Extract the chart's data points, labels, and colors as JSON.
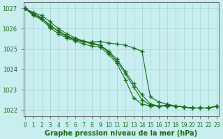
{
  "lines": [
    {
      "x": [
        0,
        1,
        2,
        3,
        4,
        5,
        6,
        7,
        8,
        9,
        10,
        11,
        12,
        13,
        14,
        15,
        16,
        17,
        18,
        19,
        20,
        21,
        22,
        23
      ],
      "y": [
        1027.0,
        1026.8,
        1026.65,
        1026.35,
        1026.0,
        1025.75,
        1025.55,
        1025.4,
        1025.3,
        1025.2,
        1024.9,
        1024.5,
        1023.9,
        1023.3,
        1022.75,
        1022.3,
        1022.2,
        1022.2,
        1022.2,
        1022.15,
        1022.1,
        1022.1,
        1022.1,
        1022.2
      ]
    },
    {
      "x": [
        0,
        1,
        2,
        3,
        4,
        5,
        6,
        7,
        8,
        9,
        10,
        11,
        12,
        13,
        14,
        15,
        16,
        17,
        18,
        19,
        20,
        21,
        22,
        23
      ],
      "y": [
        1027.0,
        1026.7,
        1026.5,
        1026.2,
        1025.85,
        1025.6,
        1025.45,
        1025.35,
        1025.35,
        1025.38,
        1025.3,
        1025.25,
        1025.2,
        1025.05,
        1024.9,
        1022.65,
        1022.4,
        1022.3,
        1022.2,
        1022.15,
        1022.1,
        1022.1,
        1022.1,
        1022.2
      ]
    },
    {
      "x": [
        0,
        1,
        2,
        3,
        4,
        5,
        6,
        7,
        8,
        9,
        10,
        11,
        12,
        13,
        14,
        15,
        16,
        17,
        18,
        19,
        20,
        21,
        22,
        23
      ],
      "y": [
        1027.0,
        1026.75,
        1026.55,
        1026.1,
        1025.9,
        1025.65,
        1025.5,
        1025.38,
        1025.25,
        1025.18,
        1024.85,
        1024.4,
        1023.8,
        1023.15,
        1022.5,
        1022.25,
        1022.2,
        1022.2,
        1022.2,
        1022.15,
        1022.1,
        1022.1,
        1022.1,
        1022.2
      ]
    },
    {
      "x": [
        0,
        1,
        2,
        3,
        4,
        5,
        6,
        7,
        8,
        9,
        10,
        11,
        12,
        13,
        14,
        15,
        16,
        17,
        18,
        19,
        20,
        21,
        22,
        23
      ],
      "y": [
        1027.0,
        1026.65,
        1026.45,
        1026.05,
        1025.75,
        1025.55,
        1025.4,
        1025.25,
        1025.15,
        1025.1,
        1024.75,
        1024.3,
        1023.5,
        1022.6,
        1022.3,
        1022.2,
        1022.2,
        1022.25,
        1022.2,
        1022.15,
        1022.1,
        1022.1,
        1022.1,
        1022.2
      ]
    }
  ],
  "line_color": "#1a6b1a",
  "marker": "+",
  "markersize": 4,
  "markeredgewidth": 1.0,
  "linewidth": 0.8,
  "background_color": "#c8eef0",
  "grid_color": "#9acece",
  "xlim": [
    -0.2,
    23.2
  ],
  "ylim": [
    1021.7,
    1027.3
  ],
  "yticks": [
    1022,
    1023,
    1024,
    1025,
    1026,
    1027
  ],
  "xtick_labels": [
    "0",
    "1",
    "2",
    "3",
    "4",
    "5",
    "6",
    "7",
    "8",
    "9",
    "10",
    "11",
    "12",
    "13",
    "14",
    "15",
    "16",
    "17",
    "18",
    "19",
    "20",
    "21",
    "22",
    "23"
  ],
  "xlabel": "Graphe pression niveau de la mer (hPa)",
  "xlabel_color": "#1a6b1a",
  "xlabel_fontsize": 7,
  "tick_color": "#1a6b1a",
  "ytick_fontsize": 6,
  "xtick_fontsize": 5.5,
  "axis_color": "#555555"
}
